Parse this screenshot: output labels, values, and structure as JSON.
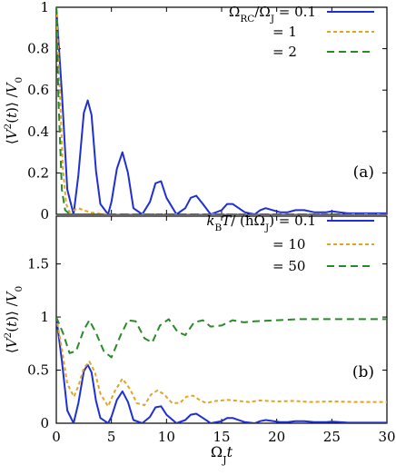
{
  "chart_data": [
    {
      "type": "line",
      "panel_label": "(a)",
      "xlim": [
        0,
        30
      ],
      "ylim": [
        0,
        1
      ],
      "xticks": [
        0,
        5,
        10,
        15,
        20,
        25,
        30
      ],
      "yticks": [
        0,
        0.2,
        0.4,
        0.6,
        0.8,
        1
      ],
      "ytick_labels": [
        "0",
        "0.2",
        "0.4",
        "0.6",
        "0.8",
        "1"
      ],
      "ylabel": "⟨V²(t)⟩ / V₀²",
      "legend_position": "top-right",
      "legend_title": "Ω_RC/Ω_J",
      "series": [
        {
          "name": "Ω_RC/Ω_J = 0.1",
          "label": "= 0.1",
          "color": "#1f2fd6",
          "dash": "solid",
          "x": [
            0,
            0.5,
            1,
            1.57,
            2,
            2.5,
            2.85,
            3.2,
            3.6,
            4,
            4.7,
            5,
            5.5,
            6,
            6.5,
            7,
            7.8,
            8.5,
            9,
            9.5,
            10,
            10.9,
            11.7,
            12.2,
            12.7,
            13.3,
            14,
            15,
            15.5,
            16,
            17.1,
            18,
            18.5,
            19,
            20.3,
            21,
            21.7,
            22.5,
            23.4,
            24.5,
            25,
            25.7,
            26.5,
            28,
            29,
            30
          ],
          "y": [
            1,
            0.59,
            0.12,
            0,
            0.19,
            0.49,
            0.55,
            0.48,
            0.21,
            0.05,
            0,
            0.06,
            0.22,
            0.3,
            0.2,
            0.03,
            0,
            0.06,
            0.15,
            0.16,
            0.08,
            0,
            0.03,
            0.08,
            0.09,
            0.05,
            0,
            0.02,
            0.05,
            0.05,
            0.01,
            0,
            0.02,
            0.03,
            0.01,
            0.01,
            0.02,
            0.02,
            0.01,
            0.01,
            0.015,
            0.01,
            0.005,
            0.005,
            0.005,
            0.005
          ]
        },
        {
          "name": "Ω_RC/Ω_J = 1",
          "label": "= 1",
          "color": "#e4a51e",
          "dash": "dotted",
          "x": [
            0,
            0.3,
            0.6,
            0.9,
            1.2,
            1.6,
            2,
            2.5,
            3,
            4,
            5,
            30
          ],
          "y": [
            1,
            0.62,
            0.22,
            0.05,
            0.01,
            0.02,
            0.03,
            0.02,
            0.01,
            0.002,
            0,
            0
          ]
        },
        {
          "name": "Ω_RC/Ω_J = 2",
          "label": "= 2",
          "color": "#2a8a2a",
          "dash": "dashed",
          "x": [
            0,
            0.2,
            0.5,
            0.8,
            1.2,
            1.6,
            2,
            30
          ],
          "y": [
            1,
            0.55,
            0.12,
            0.02,
            0.002,
            0,
            0,
            0
          ]
        }
      ]
    },
    {
      "type": "line",
      "panel_label": "(b)",
      "xlim": [
        0,
        30
      ],
      "ylim": [
        0,
        1.95
      ],
      "xticks": [
        0,
        5,
        10,
        15,
        20,
        25,
        30
      ],
      "xtick_labels": [
        "0",
        "5",
        "10",
        "15",
        "20",
        "25",
        "30"
      ],
      "yticks": [
        0,
        0.5,
        1,
        1.5
      ],
      "ytick_labels": [
        "0",
        "0.5",
        "1",
        "1.5"
      ],
      "xlabel": "Ω_J t",
      "ylabel": "⟨V²(t)⟩ / V₀²",
      "legend_position": "top-right",
      "legend_title": "k_B T / (ħΩ_J)",
      "series": [
        {
          "name": "k_B T / (ħΩ_J) = 0.1",
          "label": "= 0.1",
          "color": "#1f2fd6",
          "dash": "solid",
          "x": [
            0,
            0.5,
            1,
            1.57,
            2,
            2.5,
            2.85,
            3.2,
            3.6,
            4,
            4.7,
            5,
            5.5,
            6,
            6.5,
            7,
            7.8,
            8.5,
            9,
            9.5,
            10,
            10.9,
            11.7,
            12.2,
            12.7,
            13.3,
            14,
            15,
            15.5,
            16,
            17.1,
            18,
            18.5,
            19,
            20.3,
            21,
            21.7,
            22.5,
            23.4,
            24.5,
            25,
            25.7,
            26.5,
            28,
            29,
            30
          ],
          "y": [
            1,
            0.59,
            0.12,
            0,
            0.19,
            0.49,
            0.55,
            0.48,
            0.21,
            0.05,
            0,
            0.06,
            0.22,
            0.3,
            0.2,
            0.03,
            0,
            0.06,
            0.15,
            0.16,
            0.08,
            0,
            0.03,
            0.08,
            0.09,
            0.05,
            0,
            0.02,
            0.05,
            0.05,
            0.01,
            0,
            0.02,
            0.03,
            0.01,
            0.01,
            0.02,
            0.02,
            0.01,
            0.01,
            0.015,
            0.01,
            0.005,
            0.005,
            0.005,
            0.005
          ]
        },
        {
          "name": "k_B T / (ħΩ_J) = 10",
          "label": "= 10",
          "color": "#e4a51e",
          "dash": "dotted",
          "x": [
            0,
            0.5,
            1,
            1.6,
            2,
            2.5,
            3,
            3.5,
            4,
            4.7,
            5.3,
            6,
            6.7,
            7.3,
            8,
            8.6,
            9.2,
            9.8,
            10.5,
            11.2,
            11.8,
            12.4,
            13,
            13.6,
            14.5,
            15.5,
            16.5,
            17.5,
            18.5,
            20,
            21.5,
            23,
            25,
            27,
            30
          ],
          "y": [
            1,
            0.7,
            0.37,
            0.25,
            0.35,
            0.52,
            0.58,
            0.48,
            0.28,
            0.16,
            0.3,
            0.42,
            0.32,
            0.19,
            0.17,
            0.27,
            0.31,
            0.27,
            0.19,
            0.19,
            0.25,
            0.26,
            0.22,
            0.19,
            0.21,
            0.22,
            0.21,
            0.2,
            0.215,
            0.205,
            0.21,
            0.2,
            0.205,
            0.2,
            0.2
          ]
        },
        {
          "name": "k_B T / (ħΩ_J) = 50",
          "label": "= 50",
          "color": "#2a8a2a",
          "dash": "dashed",
          "x": [
            0,
            0.6,
            1.2,
            1.8,
            2.5,
            3,
            3.6,
            4.3,
            5,
            5.8,
            6.5,
            7.2,
            8,
            8.7,
            9.4,
            10.2,
            11,
            11.7,
            12.5,
            13.3,
            14,
            15,
            16,
            17,
            18,
            20,
            22,
            25,
            28,
            30
          ],
          "y": [
            1,
            0.85,
            0.66,
            0.68,
            0.88,
            0.97,
            0.85,
            0.68,
            0.62,
            0.82,
            0.97,
            0.96,
            0.8,
            0.76,
            0.92,
            0.98,
            0.86,
            0.83,
            0.95,
            0.97,
            0.91,
            0.92,
            0.97,
            0.95,
            0.96,
            0.97,
            0.98,
            0.98,
            0.98,
            0.98
          ]
        }
      ]
    }
  ]
}
